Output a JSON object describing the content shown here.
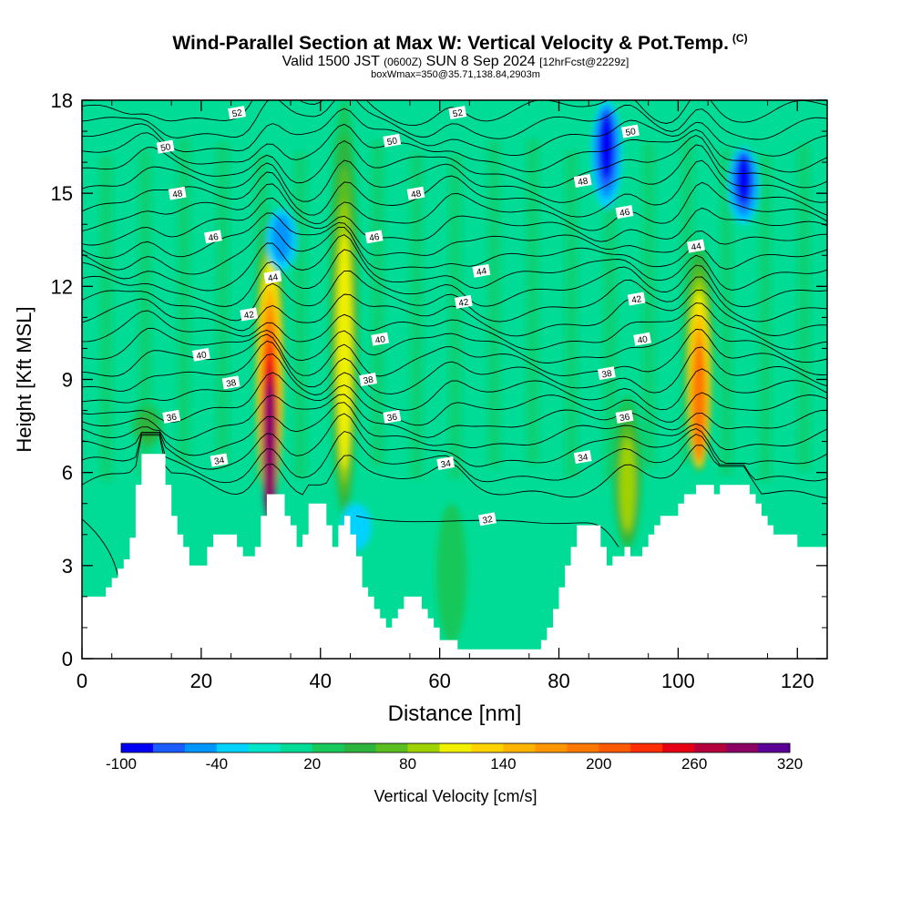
{
  "title": "Wind-Parallel Section at Max W: Vertical Velocity & Pot.Temp.",
  "title_mark": "(C)",
  "subtitle_a": "Valid 1500 JST",
  "subtitle_b": "(0600Z)",
  "subtitle_c": "SUN 8 Sep 2024",
  "subtitle_d": "[12hrFcst@2229z]",
  "subtitle2": "boxWmax=350@35.71,138.84,2903m",
  "colorbar": {
    "label": "Vertical Velocity [cm/s]",
    "tick_labels": [
      "-100",
      "-40",
      "20",
      "80",
      "140",
      "200",
      "260",
      "320"
    ],
    "tick_values": [
      -100,
      -40,
      20,
      80,
      140,
      200,
      260,
      320
    ],
    "colors": [
      "#0000f5",
      "#1a5cff",
      "#0096ff",
      "#00d2ff",
      "#00e5c8",
      "#00dc96",
      "#19c85a",
      "#2db43c",
      "#5abe1e",
      "#a0d200",
      "#f0f000",
      "#ffd200",
      "#ffb400",
      "#ff9600",
      "#ff7800",
      "#ff5a00",
      "#ff2d00",
      "#e60014",
      "#b4003c",
      "#8c0064",
      "#5a0096"
    ]
  },
  "chart_data": {
    "type": "heatmap",
    "xlabel": "Distance [nm]",
    "ylabel": "Height [Kft MSL]",
    "xlim": [
      0,
      125
    ],
    "ylim": [
      0,
      18
    ],
    "xticks": [
      0,
      20,
      40,
      60,
      80,
      100,
      120
    ],
    "yticks": [
      0,
      3,
      6,
      9,
      12,
      15,
      18
    ],
    "background_value": 0,
    "updraft_cores": [
      {
        "x": 31.5,
        "ylo": 5.0,
        "yhi": 14.5,
        "peak": 290
      },
      {
        "x": 44,
        "ylo": 4.5,
        "yhi": 18.0,
        "peak": 110
      },
      {
        "x": 103.5,
        "ylo": 6.0,
        "yhi": 13.5,
        "peak": 190
      },
      {
        "x": 91.5,
        "ylo": 3.5,
        "yhi": 8.5,
        "peak": 90
      },
      {
        "x": 11,
        "ylo": 6.8,
        "yhi": 8.2,
        "peak": 55
      },
      {
        "x": 62,
        "ylo": 0.5,
        "yhi": 5.0,
        "peak": 40
      }
    ],
    "downdraft_cores": [
      {
        "x": 88,
        "ylo": 14.5,
        "yhi": 18.0,
        "peak": -100
      },
      {
        "x": 111,
        "ylo": 14.0,
        "yhi": 16.5,
        "peak": -100
      },
      {
        "x": 33.5,
        "ylo": 12.5,
        "yhi": 14.5,
        "peak": -55
      },
      {
        "x": 46,
        "ylo": 3.5,
        "yhi": 5.0,
        "peak": -45
      }
    ],
    "theta_labels": [
      {
        "value": "32",
        "x": 68,
        "y": 4.5
      },
      {
        "value": "34",
        "x": 23,
        "y": 6.4
      },
      {
        "value": "34",
        "x": 61,
        "y": 6.3
      },
      {
        "value": "34",
        "x": 84,
        "y": 6.5
      },
      {
        "value": "36",
        "x": 15,
        "y": 7.8
      },
      {
        "value": "36",
        "x": 52,
        "y": 7.8
      },
      {
        "value": "36",
        "x": 91,
        "y": 7.8
      },
      {
        "value": "38",
        "x": 25,
        "y": 8.9
      },
      {
        "value": "38",
        "x": 48,
        "y": 9.0
      },
      {
        "value": "38",
        "x": 88,
        "y": 9.2
      },
      {
        "value": "40",
        "x": 20,
        "y": 9.8
      },
      {
        "value": "40",
        "x": 50,
        "y": 10.3
      },
      {
        "value": "40",
        "x": 94,
        "y": 10.3
      },
      {
        "value": "42",
        "x": 28,
        "y": 11.1
      },
      {
        "value": "42",
        "x": 64,
        "y": 11.5
      },
      {
        "value": "42",
        "x": 93,
        "y": 11.6
      },
      {
        "value": "44",
        "x": 32,
        "y": 12.3
      },
      {
        "value": "44",
        "x": 67,
        "y": 12.5
      },
      {
        "value": "44",
        "x": 103,
        "y": 13.3
      },
      {
        "value": "46",
        "x": 22,
        "y": 13.6
      },
      {
        "value": "46",
        "x": 49,
        "y": 13.6
      },
      {
        "value": "46",
        "x": 91,
        "y": 14.4
      },
      {
        "value": "48",
        "x": 16,
        "y": 15.0
      },
      {
        "value": "48",
        "x": 56,
        "y": 15.0
      },
      {
        "value": "48",
        "x": 84,
        "y": 15.4
      },
      {
        "value": "50",
        "x": 14,
        "y": 16.5
      },
      {
        "value": "50",
        "x": 52,
        "y": 16.7
      },
      {
        "value": "50",
        "x": 92,
        "y": 17.0
      },
      {
        "value": "52",
        "x": 26,
        "y": 17.6
      },
      {
        "value": "52",
        "x": 63,
        "y": 17.6
      }
    ],
    "terrain_height": [
      [
        0,
        2.0
      ],
      [
        3,
        2.0
      ],
      [
        4,
        2.3
      ],
      [
        5,
        2.6
      ],
      [
        6,
        2.9
      ],
      [
        7,
        3.2
      ],
      [
        8,
        3.9
      ],
      [
        9,
        5.6
      ],
      [
        10,
        6.6
      ],
      [
        13,
        6.6
      ],
      [
        14,
        5.6
      ],
      [
        15,
        4.6
      ],
      [
        16,
        4.0
      ],
      [
        17,
        3.6
      ],
      [
        18,
        3.0
      ],
      [
        20,
        3.0
      ],
      [
        21,
        3.6
      ],
      [
        22,
        4.0
      ],
      [
        25,
        4.0
      ],
      [
        26,
        3.6
      ],
      [
        27,
        3.3
      ],
      [
        28,
        3.3
      ],
      [
        29,
        3.6
      ],
      [
        30,
        4.6
      ],
      [
        31,
        5.3
      ],
      [
        33,
        5.3
      ],
      [
        34,
        4.6
      ],
      [
        35,
        4.3
      ],
      [
        36,
        3.6
      ],
      [
        37,
        4.0
      ],
      [
        38,
        5.0
      ],
      [
        40,
        5.0
      ],
      [
        41,
        4.3
      ],
      [
        42,
        3.6
      ],
      [
        43,
        4.3
      ],
      [
        44,
        4.6
      ],
      [
        45,
        4.0
      ],
      [
        46,
        3.3
      ],
      [
        47,
        2.3
      ],
      [
        48,
        2.0
      ],
      [
        49,
        1.6
      ],
      [
        50,
        1.3
      ],
      [
        51,
        1.0
      ],
      [
        52,
        1.3
      ],
      [
        53,
        1.6
      ],
      [
        54,
        2.0
      ],
      [
        56,
        2.0
      ],
      [
        57,
        1.6
      ],
      [
        58,
        1.3
      ],
      [
        59,
        1.0
      ],
      [
        60,
        0.6
      ],
      [
        62,
        0.6
      ],
      [
        63,
        0.3
      ],
      [
        76,
        0.3
      ],
      [
        77,
        0.6
      ],
      [
        78,
        1.0
      ],
      [
        79,
        1.6
      ],
      [
        80,
        2.3
      ],
      [
        81,
        3.0
      ],
      [
        82,
        3.6
      ],
      [
        83,
        4.3
      ],
      [
        86,
        4.3
      ],
      [
        87,
        3.6
      ],
      [
        88,
        3.0
      ],
      [
        89,
        3.3
      ],
      [
        90,
        3.3
      ],
      [
        91,
        3.6
      ],
      [
        92,
        3.3
      ],
      [
        94,
        3.6
      ],
      [
        95,
        4.0
      ],
      [
        96,
        4.3
      ],
      [
        97,
        4.6
      ],
      [
        99,
        4.6
      ],
      [
        100,
        5.0
      ],
      [
        101,
        5.3
      ],
      [
        102,
        5.3
      ],
      [
        103,
        5.6
      ],
      [
        105,
        5.6
      ],
      [
        106,
        5.3
      ],
      [
        107,
        5.6
      ],
      [
        111,
        5.6
      ],
      [
        112,
        5.3
      ],
      [
        113,
        5.0
      ],
      [
        114,
        4.6
      ],
      [
        115,
        4.3
      ],
      [
        116,
        4.0
      ],
      [
        119,
        4.0
      ],
      [
        120,
        3.6
      ],
      [
        125,
        3.6
      ]
    ]
  }
}
